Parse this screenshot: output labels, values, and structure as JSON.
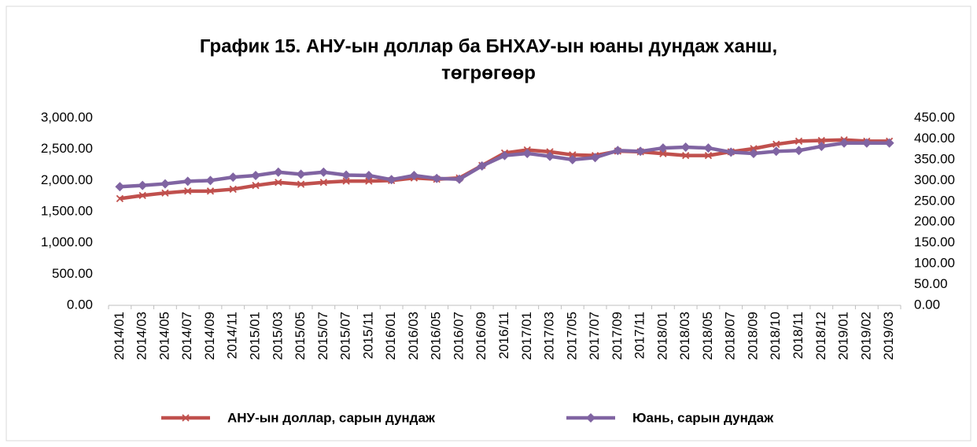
{
  "chart_data": {
    "type": "line",
    "title": [
      "График 15. АНУ-ын доллар ба БНХАУ-ын юаны дундаж ханш,",
      "төгрөгөөр"
    ],
    "categories": [
      "2014/01",
      "2014/03",
      "2014/05",
      "2014/07",
      "2014/09",
      "2014/11",
      "2015/01",
      "2015/03",
      "2015/05",
      "2015/07",
      "2015/07",
      "2015/11",
      "2016/01",
      "2016/03",
      "2016/05",
      "2016/07",
      "2016/09",
      "2016/11",
      "2017/01",
      "2017/03",
      "2017/05",
      "2017/07",
      "2017/09",
      "2017/11",
      "2018/01",
      "2018/03",
      "2018/05",
      "2018/07",
      "2018/09",
      "2018/10",
      "2018/11",
      "2018/12",
      "2019/01",
      "2019/02",
      "2019/03"
    ],
    "series": [
      {
        "name": "АНУ-ын доллар, сарын дундаж",
        "color": "#c0504d",
        "marker": "x",
        "values": [
          1710,
          1760,
          1800,
          1830,
          1830,
          1860,
          1920,
          1970,
          1940,
          1970,
          1990,
          1990,
          2000,
          2040,
          2020,
          2040,
          2240,
          2440,
          2490,
          2460,
          2410,
          2400,
          2470,
          2460,
          2430,
          2400,
          2400,
          2460,
          2510,
          2580,
          2630,
          2640,
          2650,
          2630,
          2630
        ]
      },
      {
        "name": "Юань, сарын дундаж",
        "color": "#8064a2",
        "marker": "diamond",
        "axis": "y2",
        "values": [
          285,
          288,
          292,
          298,
          300,
          308,
          312,
          320,
          315,
          320,
          313,
          312,
          302,
          312,
          305,
          303,
          335,
          360,
          365,
          358,
          350,
          355,
          372,
          370,
          378,
          380,
          378,
          368,
          365,
          370,
          372,
          382,
          390,
          390,
          390
        ]
      }
    ],
    "ylim": [
      0,
      3000
    ],
    "yticks": [
      {
        "value": 0,
        "label": "0.00"
      },
      {
        "value": 500,
        "label": "500.00"
      },
      {
        "value": 1000,
        "label": "1,000.00"
      },
      {
        "value": 1500,
        "label": "1,500.00"
      },
      {
        "value": 2000,
        "label": "2,000.00"
      },
      {
        "value": 2500,
        "label": "2,500.00"
      },
      {
        "value": 3000,
        "label": "3,000.00"
      }
    ],
    "y2lim": [
      0,
      450
    ],
    "y2ticks": [
      {
        "value": 0,
        "label": "0.00"
      },
      {
        "value": 50,
        "label": "50.00"
      },
      {
        "value": 100,
        "label": "100.00"
      },
      {
        "value": 150,
        "label": "150.00"
      },
      {
        "value": 200,
        "label": "200.00"
      },
      {
        "value": 250,
        "label": "250.00"
      },
      {
        "value": 300,
        "label": "300.00"
      },
      {
        "value": 350,
        "label": "350.00"
      },
      {
        "value": 400,
        "label": "400.00"
      },
      {
        "value": 450,
        "label": "450.00"
      }
    ]
  }
}
